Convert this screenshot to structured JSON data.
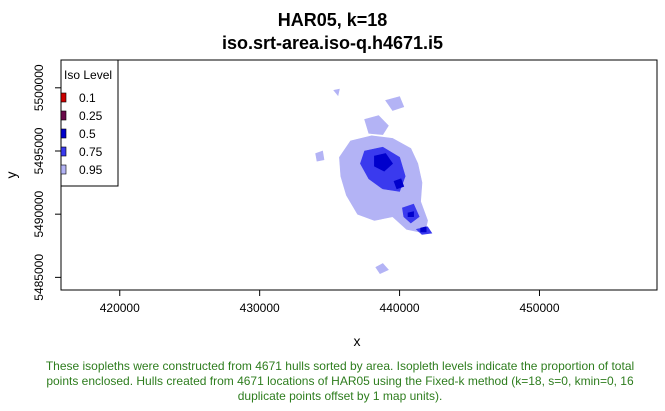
{
  "chart_data": {
    "type": "isopleth-map",
    "title": "HAR05, k=18",
    "subtitle": "iso.srt-area.iso-q.h4671.i5",
    "xlabel": "x",
    "ylabel": "y",
    "xlim": [
      415800,
      458400
    ],
    "ylim": [
      5484000,
      5502200
    ],
    "x_ticks": [
      420000,
      430000,
      440000,
      450000
    ],
    "x_tick_labels": [
      "420000",
      "430000",
      "440000",
      "450000"
    ],
    "y_ticks": [
      5485000,
      5490000,
      5495000,
      5500000
    ],
    "y_tick_labels": [
      "5485000",
      "5490000",
      "5495000",
      "5500000"
    ],
    "legend": {
      "title": "Iso Level",
      "placement": "top-left",
      "entries": [
        {
          "label": "0.1",
          "color": "#cc0000"
        },
        {
          "label": "0.25",
          "color": "#6a0a4a"
        },
        {
          "label": "0.5",
          "color": "#0000cc"
        },
        {
          "label": "0.75",
          "color": "#3a3aee"
        },
        {
          "label": "0.95",
          "color": "#b3b3f5"
        }
      ]
    },
    "series": [
      {
        "level": "0.95",
        "color": "#b3b3f5",
        "polygons": [
          [
            [
              436500,
              5495800
            ],
            [
              438000,
              5496200
            ],
            [
              439500,
              5496000
            ],
            [
              440800,
              5495200
            ],
            [
              441300,
              5494000
            ],
            [
              441600,
              5492500
            ],
            [
              441500,
              5491000
            ],
            [
              442000,
              5489500
            ],
            [
              441800,
              5488500
            ],
            [
              440500,
              5488800
            ],
            [
              439500,
              5489800
            ],
            [
              438200,
              5489500
            ],
            [
              437000,
              5490000
            ],
            [
              436200,
              5491500
            ],
            [
              435800,
              5493000
            ],
            [
              435700,
              5494500
            ]
          ],
          [
            [
              437500,
              5497500
            ],
            [
              438500,
              5497800
            ],
            [
              439200,
              5497000
            ],
            [
              438800,
              5496300
            ],
            [
              437800,
              5496400
            ]
          ],
          [
            [
              439000,
              5499000
            ],
            [
              440000,
              5499300
            ],
            [
              440300,
              5498500
            ],
            [
              439500,
              5498200
            ]
          ],
          [
            [
              434000,
              5494800
            ],
            [
              434500,
              5495000
            ],
            [
              434600,
              5494300
            ],
            [
              434100,
              5494200
            ]
          ],
          [
            [
              438300,
              5485800
            ],
            [
              438800,
              5486100
            ],
            [
              439200,
              5485600
            ],
            [
              438600,
              5485300
            ]
          ],
          [
            [
              435300,
              5499800
            ],
            [
              435700,
              5499900
            ],
            [
              435600,
              5499400
            ]
          ]
        ]
      },
      {
        "level": "0.75",
        "color": "#3a3aee",
        "polygons": [
          [
            [
              437500,
              5495000
            ],
            [
              438800,
              5495300
            ],
            [
              440000,
              5494500
            ],
            [
              440400,
              5493000
            ],
            [
              440000,
              5491800
            ],
            [
              438800,
              5492000
            ],
            [
              437800,
              5492800
            ],
            [
              437200,
              5494000
            ]
          ],
          [
            [
              440200,
              5490500
            ],
            [
              441000,
              5490800
            ],
            [
              441400,
              5489800
            ],
            [
              440800,
              5489300
            ],
            [
              440300,
              5489800
            ]
          ],
          [
            [
              441200,
              5488800
            ],
            [
              442000,
              5489000
            ],
            [
              442300,
              5488500
            ],
            [
              441600,
              5488400
            ]
          ]
        ]
      },
      {
        "level": "0.5",
        "color": "#0000cc",
        "polygons": [
          [
            [
              438200,
              5494600
            ],
            [
              439000,
              5494800
            ],
            [
              439500,
              5494000
            ],
            [
              438900,
              5493400
            ],
            [
              438200,
              5493800
            ]
          ],
          [
            [
              439600,
              5492600
            ],
            [
              440100,
              5492800
            ],
            [
              440300,
              5492200
            ],
            [
              439800,
              5492000
            ]
          ],
          [
            [
              441500,
              5488900
            ],
            [
              441900,
              5489000
            ],
            [
              441900,
              5488600
            ],
            [
              441500,
              5488600
            ]
          ],
          [
            [
              440600,
              5490100
            ],
            [
              441000,
              5490200
            ],
            [
              441000,
              5489800
            ],
            [
              440600,
              5489800
            ]
          ]
        ]
      },
      {
        "level": "0.25",
        "color": "#6a0a4a",
        "polygons": []
      },
      {
        "level": "0.1",
        "color": "#cc0000",
        "polygons": []
      }
    ]
  },
  "caption": "These isopleths were constructed from 4671 hulls sorted by area. Isopleth levels indicate the proportion of total points enclosed. Hulls created from 4671 locations of HAR05 using the Fixed-k method (k=18, s=0, kmin=0, 16 duplicate points offset by 1 map units).",
  "colors": {
    "caption": "#2e7d1e"
  }
}
